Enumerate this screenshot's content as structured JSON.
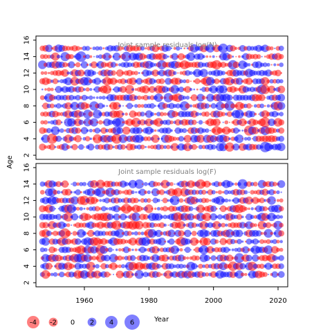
{
  "chart_data": [
    {
      "type": "scatter",
      "subtype": "bubble",
      "title": "Joint sample residuals log(N)",
      "xlabel": "Year",
      "ylabel": "Age",
      "xlim": [
        1945,
        2023
      ],
      "ylim": [
        1.5,
        16.5
      ],
      "xticks": [
        1960,
        1980,
        2000,
        2020
      ],
      "yticks": [
        2,
        4,
        6,
        8,
        10,
        12,
        14,
        16
      ],
      "x": {
        "start": 1947,
        "end": 2021,
        "step": 1
      },
      "ages": [
        3,
        4,
        5,
        6,
        7,
        8,
        9,
        10,
        11,
        12,
        13,
        14,
        15
      ],
      "value_scale": [
        -6,
        6
      ],
      "seed": 11,
      "colors": {
        "positive": "#0000ff",
        "negative": "#ff0000"
      }
    },
    {
      "type": "scatter",
      "subtype": "bubble",
      "title": "Joint sample residuals log(F)",
      "xlabel": "Year",
      "ylabel": "Age",
      "xlim": [
        1945,
        2023
      ],
      "ylim": [
        1.5,
        16.5
      ],
      "xticks": [
        1960,
        1980,
        2000,
        2020
      ],
      "yticks": [
        2,
        4,
        6,
        8,
        10,
        12,
        14,
        16
      ],
      "x": {
        "start": 1947,
        "end": 2021,
        "step": 1
      },
      "ages": [
        3,
        4,
        5,
        6,
        7,
        8,
        9,
        10,
        11,
        12,
        13,
        14
      ],
      "value_scale": [
        -6,
        6
      ],
      "seed": 29,
      "colors": {
        "positive": "#0000ff",
        "negative": "#ff0000"
      }
    }
  ],
  "legend": {
    "placement": "bottom",
    "title": "Year",
    "entries": [
      {
        "label": "-4",
        "value": -4
      },
      {
        "label": "-2",
        "value": -2
      },
      {
        "label": "0",
        "value": 0
      },
      {
        "label": "2",
        "value": 2
      },
      {
        "label": "4",
        "value": 4
      },
      {
        "label": "6",
        "value": 6
      }
    ]
  },
  "axes": {
    "y_title": "Age",
    "x_ticks": [
      "1960",
      "1980",
      "2000",
      "2020"
    ],
    "y_ticks": [
      "2",
      "4",
      "6",
      "8",
      "10",
      "12",
      "14",
      "16"
    ]
  }
}
